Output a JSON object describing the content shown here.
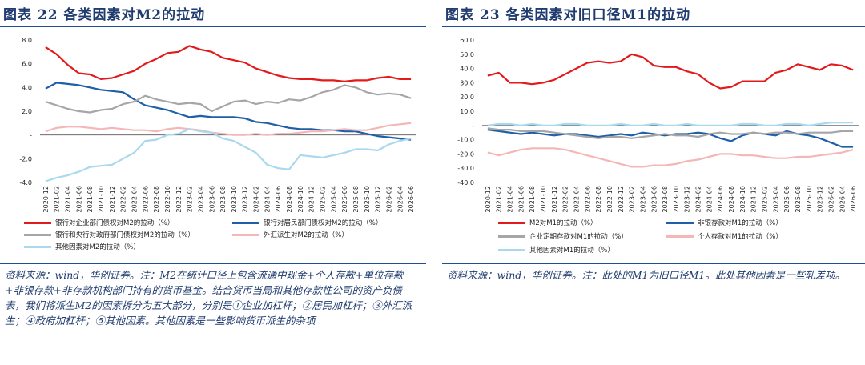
{
  "chart_data": [
    {
      "type": "line",
      "title": "图表 22 各类因素对M2的拉动",
      "ylim": [
        -4,
        8
      ],
      "yticks": [
        "8.0",
        "6.0",
        "4.0",
        "2.0",
        "-",
        "-2.0",
        "-4.0"
      ],
      "ytick_values": [
        8,
        6,
        4,
        2,
        0,
        -2,
        -4
      ],
      "categories": [
        "2020-12",
        "2021-02",
        "2021-04",
        "2021-06",
        "2021-08",
        "2021-10",
        "2021-12",
        "2022-02",
        "2022-04",
        "2022-06",
        "2022-08",
        "2022-10",
        "2022-12",
        "2023-02",
        "2023-04",
        "2023-06",
        "2023-08",
        "2023-10",
        "2023-12",
        "2024-02",
        "2024-04",
        "2024-06",
        "2024-08",
        "2024-10",
        "2024-12",
        "2025-02",
        "2025-04",
        "2025-06",
        "2025-08",
        "2025-10",
        "2025-12",
        "2026-02",
        "2026-04",
        "2026-06"
      ],
      "series": [
        {
          "name": "银行对企业部门债权对M2的拉动（%）",
          "color": "#e31a1c",
          "values": [
            7.4,
            6.8,
            5.9,
            5.2,
            5.1,
            4.7,
            4.8,
            5.1,
            5.4,
            6.0,
            6.4,
            6.9,
            7.0,
            7.5,
            7.2,
            7.0,
            6.5,
            6.3,
            6.1,
            5.6,
            5.3,
            5.0,
            4.8,
            4.7,
            4.7,
            4.6,
            4.6,
            4.5,
            4.6,
            4.6,
            4.8,
            4.9,
            4.7,
            4.7
          ]
        },
        {
          "name": "银行对居民部门债权对M2的拉动（%）",
          "color": "#1f5ea8",
          "values": [
            3.9,
            4.4,
            4.3,
            4.2,
            4.0,
            3.8,
            3.7,
            3.6,
            3.0,
            2.5,
            2.3,
            2.1,
            1.8,
            1.5,
            1.6,
            1.5,
            1.5,
            1.5,
            1.4,
            1.1,
            1.0,
            0.8,
            0.6,
            0.5,
            0.5,
            0.4,
            0.4,
            0.3,
            0.3,
            0.1,
            -0.1,
            -0.2,
            -0.3,
            -0.4
          ]
        },
        {
          "name": "银行和央行对政府部门债权对M2的拉动（%）",
          "color": "#a6a6a6",
          "values": [
            2.8,
            2.5,
            2.2,
            2.0,
            1.9,
            2.1,
            2.2,
            2.6,
            2.8,
            3.3,
            3.0,
            2.8,
            2.6,
            2.7,
            2.6,
            2.0,
            2.4,
            2.8,
            2.9,
            2.6,
            2.8,
            2.7,
            3.0,
            2.9,
            3.2,
            3.6,
            3.8,
            4.2,
            4.0,
            3.6,
            3.4,
            3.5,
            3.4,
            3.1
          ]
        },
        {
          "name": "外汇派生对M2的拉动（%）",
          "color": "#f4b6b6",
          "values": [
            0.3,
            0.6,
            0.7,
            0.7,
            0.6,
            0.5,
            0.6,
            0.5,
            0.4,
            0.4,
            0.3,
            0.5,
            0.6,
            0.5,
            0.4,
            0.2,
            0.1,
            0.0,
            0.0,
            0.1,
            0.0,
            0.1,
            0.1,
            0.2,
            0.3,
            0.3,
            0.4,
            0.5,
            0.4,
            0.4,
            0.6,
            0.8,
            0.9,
            1.0
          ]
        },
        {
          "name": "其他因素对M2的拉动（%）",
          "color": "#a9d8ef",
          "values": [
            -3.9,
            -3.6,
            -3.4,
            -3.1,
            -2.7,
            -2.6,
            -2.5,
            -2.0,
            -1.5,
            -0.5,
            -0.4,
            0.0,
            0.1,
            0.5,
            0.3,
            0.2,
            -0.3,
            -0.5,
            -1.0,
            -1.5,
            -2.5,
            -2.8,
            -2.9,
            -1.7,
            -1.8,
            -1.9,
            -1.7,
            -1.5,
            -1.2,
            -1.2,
            -1.3,
            -0.8,
            -0.5,
            -0.3
          ]
        }
      ]
    },
    {
      "type": "line",
      "title": "图表 23 各类因素对旧口径M1的拉动",
      "ylim": [
        -40,
        60
      ],
      "yticks": [
        "60.0",
        "50.0",
        "40.0",
        "30.0",
        "20.0",
        "10.0",
        "-",
        "-10.0",
        "-20.0",
        "-30.0",
        "-40.0"
      ],
      "ytick_values": [
        60,
        50,
        40,
        30,
        20,
        10,
        0,
        -10,
        -20,
        -30,
        -40
      ],
      "categories": [
        "2020-12",
        "2021-02",
        "2021-04",
        "2021-06",
        "2021-08",
        "2021-10",
        "2021-12",
        "2022-02",
        "2022-04",
        "2022-06",
        "2022-08",
        "2022-10",
        "2022-12",
        "2023-02",
        "2023-04",
        "2023-06",
        "2023-08",
        "2023-10",
        "2023-12",
        "2024-02",
        "2024-04",
        "2024-06",
        "2024-08",
        "2024-10",
        "2024-12",
        "2025-02",
        "2025-04",
        "2025-06",
        "2025-08",
        "2025-10",
        "2025-12",
        "2026-02",
        "2026-04",
        "2026-06"
      ],
      "series": [
        {
          "name": "M2对M1的拉动（%）",
          "color": "#e31a1c",
          "values": [
            35,
            37,
            30,
            30,
            29,
            30,
            32,
            36,
            40,
            44,
            45,
            44,
            45,
            50,
            48,
            42,
            41,
            41,
            38,
            36,
            30,
            26,
            27,
            31,
            31,
            31,
            37,
            39,
            43,
            41,
            39,
            43,
            42,
            39
          ]
        },
        {
          "name": "非银存款对M1的拉动（%）",
          "color": "#1f5ea8",
          "values": [
            -3,
            -4,
            -5,
            -6,
            -5,
            -6,
            -7,
            -6,
            -6,
            -7,
            -8,
            -7,
            -6,
            -7,
            -5,
            -6,
            -7,
            -6,
            -6,
            -5,
            -6,
            -9,
            -11,
            -7,
            -5,
            -6,
            -7,
            -4,
            -6,
            -7,
            -9,
            -12,
            -15,
            -15
          ]
        },
        {
          "name": "企业定期存款对M1的拉动（%）",
          "color": "#a6a6a6",
          "values": [
            -2,
            -3,
            -3,
            -4,
            -4,
            -4,
            -5,
            -6,
            -7,
            -8,
            -9,
            -8,
            -8,
            -9,
            -8,
            -7,
            -6,
            -7,
            -7,
            -8,
            -6,
            -5,
            -6,
            -6,
            -5,
            -6,
            -5,
            -5,
            -6,
            -5,
            -5,
            -5,
            -4,
            -4
          ]
        },
        {
          "name": "个人存款对M1的拉动（%）",
          "color": "#f4b6b6",
          "values": [
            -19,
            -21,
            -19,
            -17,
            -16,
            -16,
            -16,
            -17,
            -19,
            -21,
            -23,
            -25,
            -27,
            -29,
            -29,
            -28,
            -28,
            -27,
            -25,
            -24,
            -22,
            -20,
            -20,
            -21,
            -21,
            -22,
            -23,
            -23,
            -22,
            -22,
            -21,
            -20,
            -19,
            -17
          ]
        },
        {
          "name": "其他因素对M1的拉动（%）",
          "color": "#a9d8ef",
          "values": [
            0,
            1,
            1,
            0,
            1,
            0,
            0,
            1,
            1,
            0,
            0,
            0,
            1,
            0,
            0,
            1,
            0,
            0,
            1,
            0,
            0,
            0,
            0,
            1,
            1,
            0,
            0,
            1,
            1,
            0,
            1,
            2,
            2,
            2
          ]
        }
      ]
    }
  ],
  "left": {
    "title": "图表 22 各类因素对M2的拉动",
    "note": "资料来源：wind，华创证券。注：M2在统计口径上包含流通中现金+个人存款+单位存款+非银存款+非存款机构部门持有的货币基金。结合货币当局和其他存款性公司的资产负债表，我们将派生M2的因素拆分为五大部分，分别是①企业加杠杆；②居民加杠杆；③外汇派生；④政府加杠杆；⑤其他因素。其他因素是一些影响货币派生的杂项"
  },
  "right": {
    "title": "图表 23 各类因素对旧口径M1的拉动",
    "note": "资料来源：wind，华创证券。注：此处的M1为旧口径M1。此处其他因素是一些轧差项。"
  }
}
